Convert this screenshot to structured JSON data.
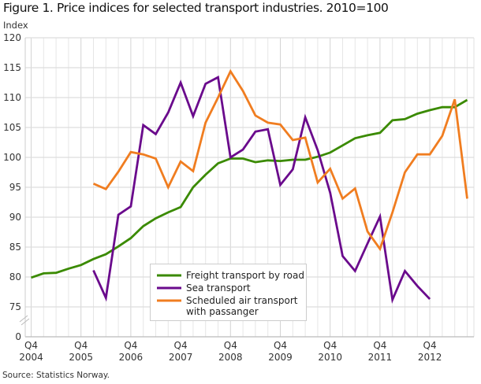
{
  "title": "Figure 1. Price indices for selected transport industries. 2010=100",
  "source": "Source: Statistics Norway.",
  "chart_data": {
    "type": "line",
    "ylabel": "Index",
    "xlabel": "",
    "ylim": [
      0,
      120
    ],
    "axis_break": [
      0,
      75
    ],
    "y_ticks": [
      "0",
      "75",
      "80",
      "85",
      "90",
      "95",
      "100",
      "105",
      "110",
      "115",
      "120"
    ],
    "x_ticks": [
      {
        "q": "Q4",
        "y": "2004"
      },
      {
        "q": "Q4",
        "y": "2005"
      },
      {
        "q": "Q4",
        "y": "2006"
      },
      {
        "q": "Q4",
        "y": "2007"
      },
      {
        "q": "Q4",
        "y": "2008"
      },
      {
        "q": "Q4",
        "y": "2009"
      },
      {
        "q": "Q4",
        "y": "2010"
      },
      {
        "q": "Q4",
        "y": "2011"
      },
      {
        "q": "Q4",
        "y": "2012"
      }
    ],
    "x": [
      "2004Q4",
      "2005Q1",
      "2005Q2",
      "2005Q3",
      "2005Q4",
      "2006Q1",
      "2006Q2",
      "2006Q3",
      "2006Q4",
      "2007Q1",
      "2007Q2",
      "2007Q3",
      "2007Q4",
      "2008Q1",
      "2008Q2",
      "2008Q3",
      "2008Q4",
      "2009Q1",
      "2009Q2",
      "2009Q3",
      "2009Q4",
      "2010Q1",
      "2010Q2",
      "2010Q3",
      "2010Q4",
      "2011Q1",
      "2011Q2",
      "2011Q3",
      "2011Q4",
      "2012Q1",
      "2012Q2",
      "2012Q3",
      "2012Q4",
      "2013Q1",
      "2013Q2",
      "2013Q3"
    ],
    "grid": true,
    "legend_position": "bottom-center",
    "series": [
      {
        "name": "Freight transport by road",
        "color": "#3a8a00",
        "values": [
          79.9,
          80.6,
          80.7,
          81.4,
          82.0,
          83.0,
          83.8,
          85.1,
          86.5,
          88.5,
          89.8,
          90.8,
          91.7,
          95.0,
          97.1,
          99.0,
          99.8,
          99.8,
          99.2,
          99.5,
          99.4,
          99.6,
          99.6,
          100.1,
          100.8,
          102.0,
          103.2,
          103.7,
          104.1,
          106.2,
          106.4,
          107.3,
          107.9,
          108.4,
          108.4,
          109.6
        ]
      },
      {
        "name": "Sea transport",
        "color": "#6a0a8c",
        "values": [
          null,
          null,
          null,
          null,
          null,
          81.1,
          76.5,
          90.4,
          91.8,
          105.4,
          103.9,
          107.5,
          112.5,
          106.9,
          112.3,
          113.4,
          100.0,
          101.3,
          104.3,
          104.7,
          95.4,
          98.0,
          106.7,
          101.2,
          94.1,
          83.5,
          81.0,
          85.6,
          90.1,
          76.2,
          81.0,
          78.5,
          76.3,
          null,
          null,
          null
        ]
      },
      {
        "name": "Scheduled air transport with passanger",
        "name_lines": [
          "Scheduled air transport",
          "with passanger"
        ],
        "color": "#f07d20",
        "values": [
          null,
          null,
          null,
          null,
          null,
          95.6,
          94.7,
          97.6,
          100.9,
          100.5,
          99.8,
          95.0,
          99.3,
          97.7,
          105.8,
          110.0,
          114.4,
          111.1,
          107.0,
          105.8,
          105.5,
          102.9,
          103.3,
          95.8,
          98.1,
          93.1,
          94.8,
          87.6,
          84.7,
          90.8,
          97.5,
          100.5,
          100.5,
          103.6,
          109.7,
          93.1
        ]
      }
    ]
  }
}
